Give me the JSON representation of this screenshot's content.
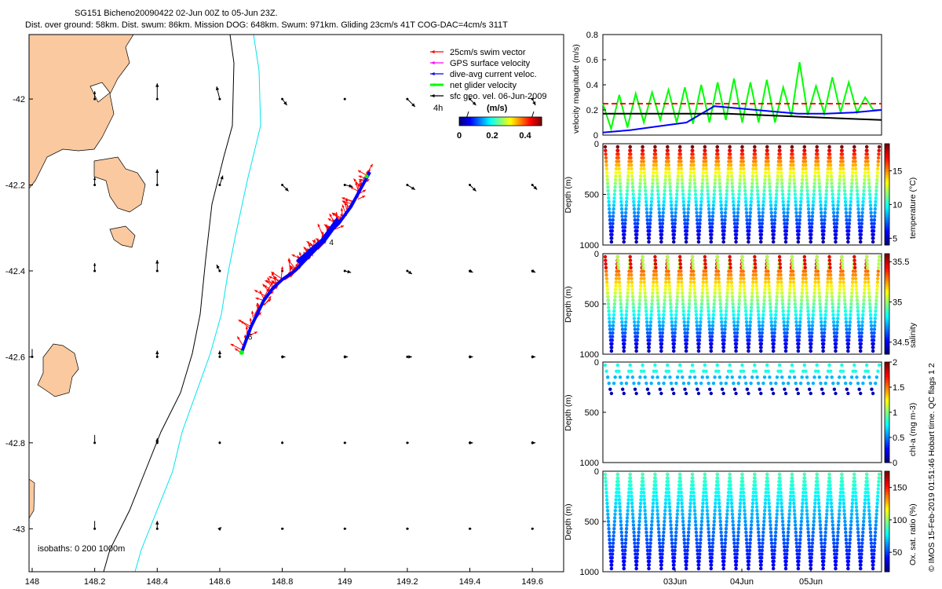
{
  "header": {
    "line1": "SG151 Bicheno20090422 02-Jun 00Z to 05-Jun 23Z.",
    "line2": "Dist. over ground: 58km. Dist. swum: 86km. Mission DOG: 648km. Swum: 971km. Gliding 23cm/s 41T COG-DAC=4cm/s 311T"
  },
  "side_label": "© IMOS 15-Feb-2019 01:51:46 Hobart time. QC flags 1  2",
  "chart_data": [
    {
      "type": "map",
      "x_ticks": [
        "148",
        "148.2",
        "148.4",
        "148.6",
        "148.8",
        "149",
        "149.2",
        "149.4",
        "149.6"
      ],
      "x_tick_values": [
        148,
        148.2,
        148.4,
        148.6,
        148.8,
        149,
        149.2,
        149.4,
        149.6
      ],
      "y_ticks": [
        "-42",
        "-42.2",
        "-42.4",
        "-42.6",
        "-42.8",
        "-43"
      ],
      "y_tick_values": [
        -42,
        -42.2,
        -42.4,
        -42.6,
        -42.8,
        -43
      ],
      "xlim": [
        147.99,
        149.7
      ],
      "ylim": [
        -43.1,
        -41.85
      ],
      "legend": [
        {
          "label": "25cm/s swim vector",
          "color": "#ff0000"
        },
        {
          "label": "GPS surface velocity",
          "color": "#ff00ff"
        },
        {
          "label": "dive-avg current veloc.",
          "color": "#0000ff"
        },
        {
          "label": "net glider velocity",
          "color": "#00ff00"
        },
        {
          "label": "sfc geo. vel. 06-Jun-2009",
          "color": "#000000"
        }
      ],
      "colorbar": {
        "label_left": "4h",
        "label_units": "(m/s)",
        "ticks": [
          "0",
          "0.2",
          "0.4"
        ],
        "range": [
          0,
          0.5
        ]
      },
      "isobath_label": "isobaths: 0   200  1000m",
      "track_labels": [
        "4",
        "6"
      ],
      "track": [
        [
          148.67,
          -42.59
        ],
        [
          148.7,
          -42.53
        ],
        [
          148.74,
          -42.47
        ],
        [
          148.77,
          -42.44
        ],
        [
          148.8,
          -42.42
        ],
        [
          148.84,
          -42.4
        ],
        [
          148.88,
          -42.37
        ],
        [
          148.92,
          -42.34
        ],
        [
          148.95,
          -42.31
        ],
        [
          148.98,
          -42.29
        ],
        [
          149.02,
          -42.25
        ],
        [
          149.05,
          -42.21
        ],
        [
          149.08,
          -42.17
        ]
      ]
    },
    {
      "type": "line",
      "ylabel": "velocity magnitude (m/s)",
      "ylim": [
        0,
        0.8
      ],
      "y_ticks": [
        "0",
        "0.2",
        "0.4",
        "0.6",
        "0.8"
      ],
      "y_tick_values": [
        0,
        0.2,
        0.4,
        0.6,
        0.8
      ],
      "series": [
        {
          "name": "",
          "color": "#00ff00",
          "values": [
            0.25,
            0.05,
            0.32,
            0.06,
            0.33,
            0.1,
            0.34,
            0.12,
            0.36,
            0.1,
            0.38,
            0.09,
            0.4,
            0.1,
            0.42,
            0.12,
            0.45,
            0.1,
            0.42,
            0.1,
            0.44,
            0.1,
            0.38,
            0.15,
            0.58,
            0.16,
            0.39,
            0.17,
            0.46,
            0.18,
            0.42,
            0.18,
            0.3,
            0.2,
            0.2
          ]
        },
        {
          "name": "",
          "color": "#ff0000",
          "constant": 0.25
        },
        {
          "name": "",
          "color": "#0000ff",
          "values": [
            0.02,
            0.04,
            0.07,
            0.1,
            0.23,
            0.21,
            0.19,
            0.17,
            0.17,
            0.18,
            0.2
          ]
        },
        {
          "name": "",
          "color": "#000000",
          "values": [
            0.17,
            0.17,
            0.17,
            0.17,
            0.17,
            0.16,
            0.15,
            0.14,
            0.13,
            0.12
          ]
        }
      ]
    },
    {
      "type": "heatmap",
      "ylabel": "Depth (m)",
      "cbar_label": "temperature (°C)",
      "cbar_ticks": [
        "5",
        "10",
        "15"
      ],
      "cbar_tick_values": [
        5,
        10,
        15
      ],
      "cbar_range": [
        4,
        19
      ],
      "y_ticks": [
        "0",
        "500",
        "1000"
      ],
      "cycles": 22,
      "max_depth": 1000
    },
    {
      "type": "heatmap",
      "ylabel": "Depth (m)",
      "cbar_label": "salinity",
      "cbar_ticks": [
        "34.5",
        "35",
        "35.5"
      ],
      "cbar_tick_values": [
        34.5,
        35,
        35.5
      ],
      "cbar_range": [
        34.35,
        35.6
      ],
      "y_ticks": [
        "0",
        "500",
        "1000"
      ],
      "cycles": 22,
      "max_depth": 1000
    },
    {
      "type": "heatmap",
      "ylabel": "Depth (m)",
      "cbar_label": "chl-a (mg m-3)",
      "cbar_ticks": [
        "0",
        "0.5",
        "1",
        "1.5",
        "2"
      ],
      "cbar_tick_values": [
        0,
        0.5,
        1,
        1.5,
        2
      ],
      "cbar_range": [
        0,
        2
      ],
      "y_ticks": [
        "0",
        "500",
        "1000"
      ],
      "cycles": 22,
      "max_depth": 1000
    },
    {
      "type": "heatmap",
      "ylabel": "Depth (m)",
      "cbar_label": "Ox. sat. ratio (%)",
      "cbar_ticks": [
        "50",
        "100",
        "150"
      ],
      "cbar_tick_values": [
        50,
        100,
        150
      ],
      "cbar_range": [
        20,
        175
      ],
      "y_ticks": [
        "0",
        "500",
        "1000"
      ],
      "x_ticks": [
        "03Jun",
        "04Jun",
        "05Jun"
      ],
      "cycles": 22,
      "max_depth": 1000
    }
  ]
}
